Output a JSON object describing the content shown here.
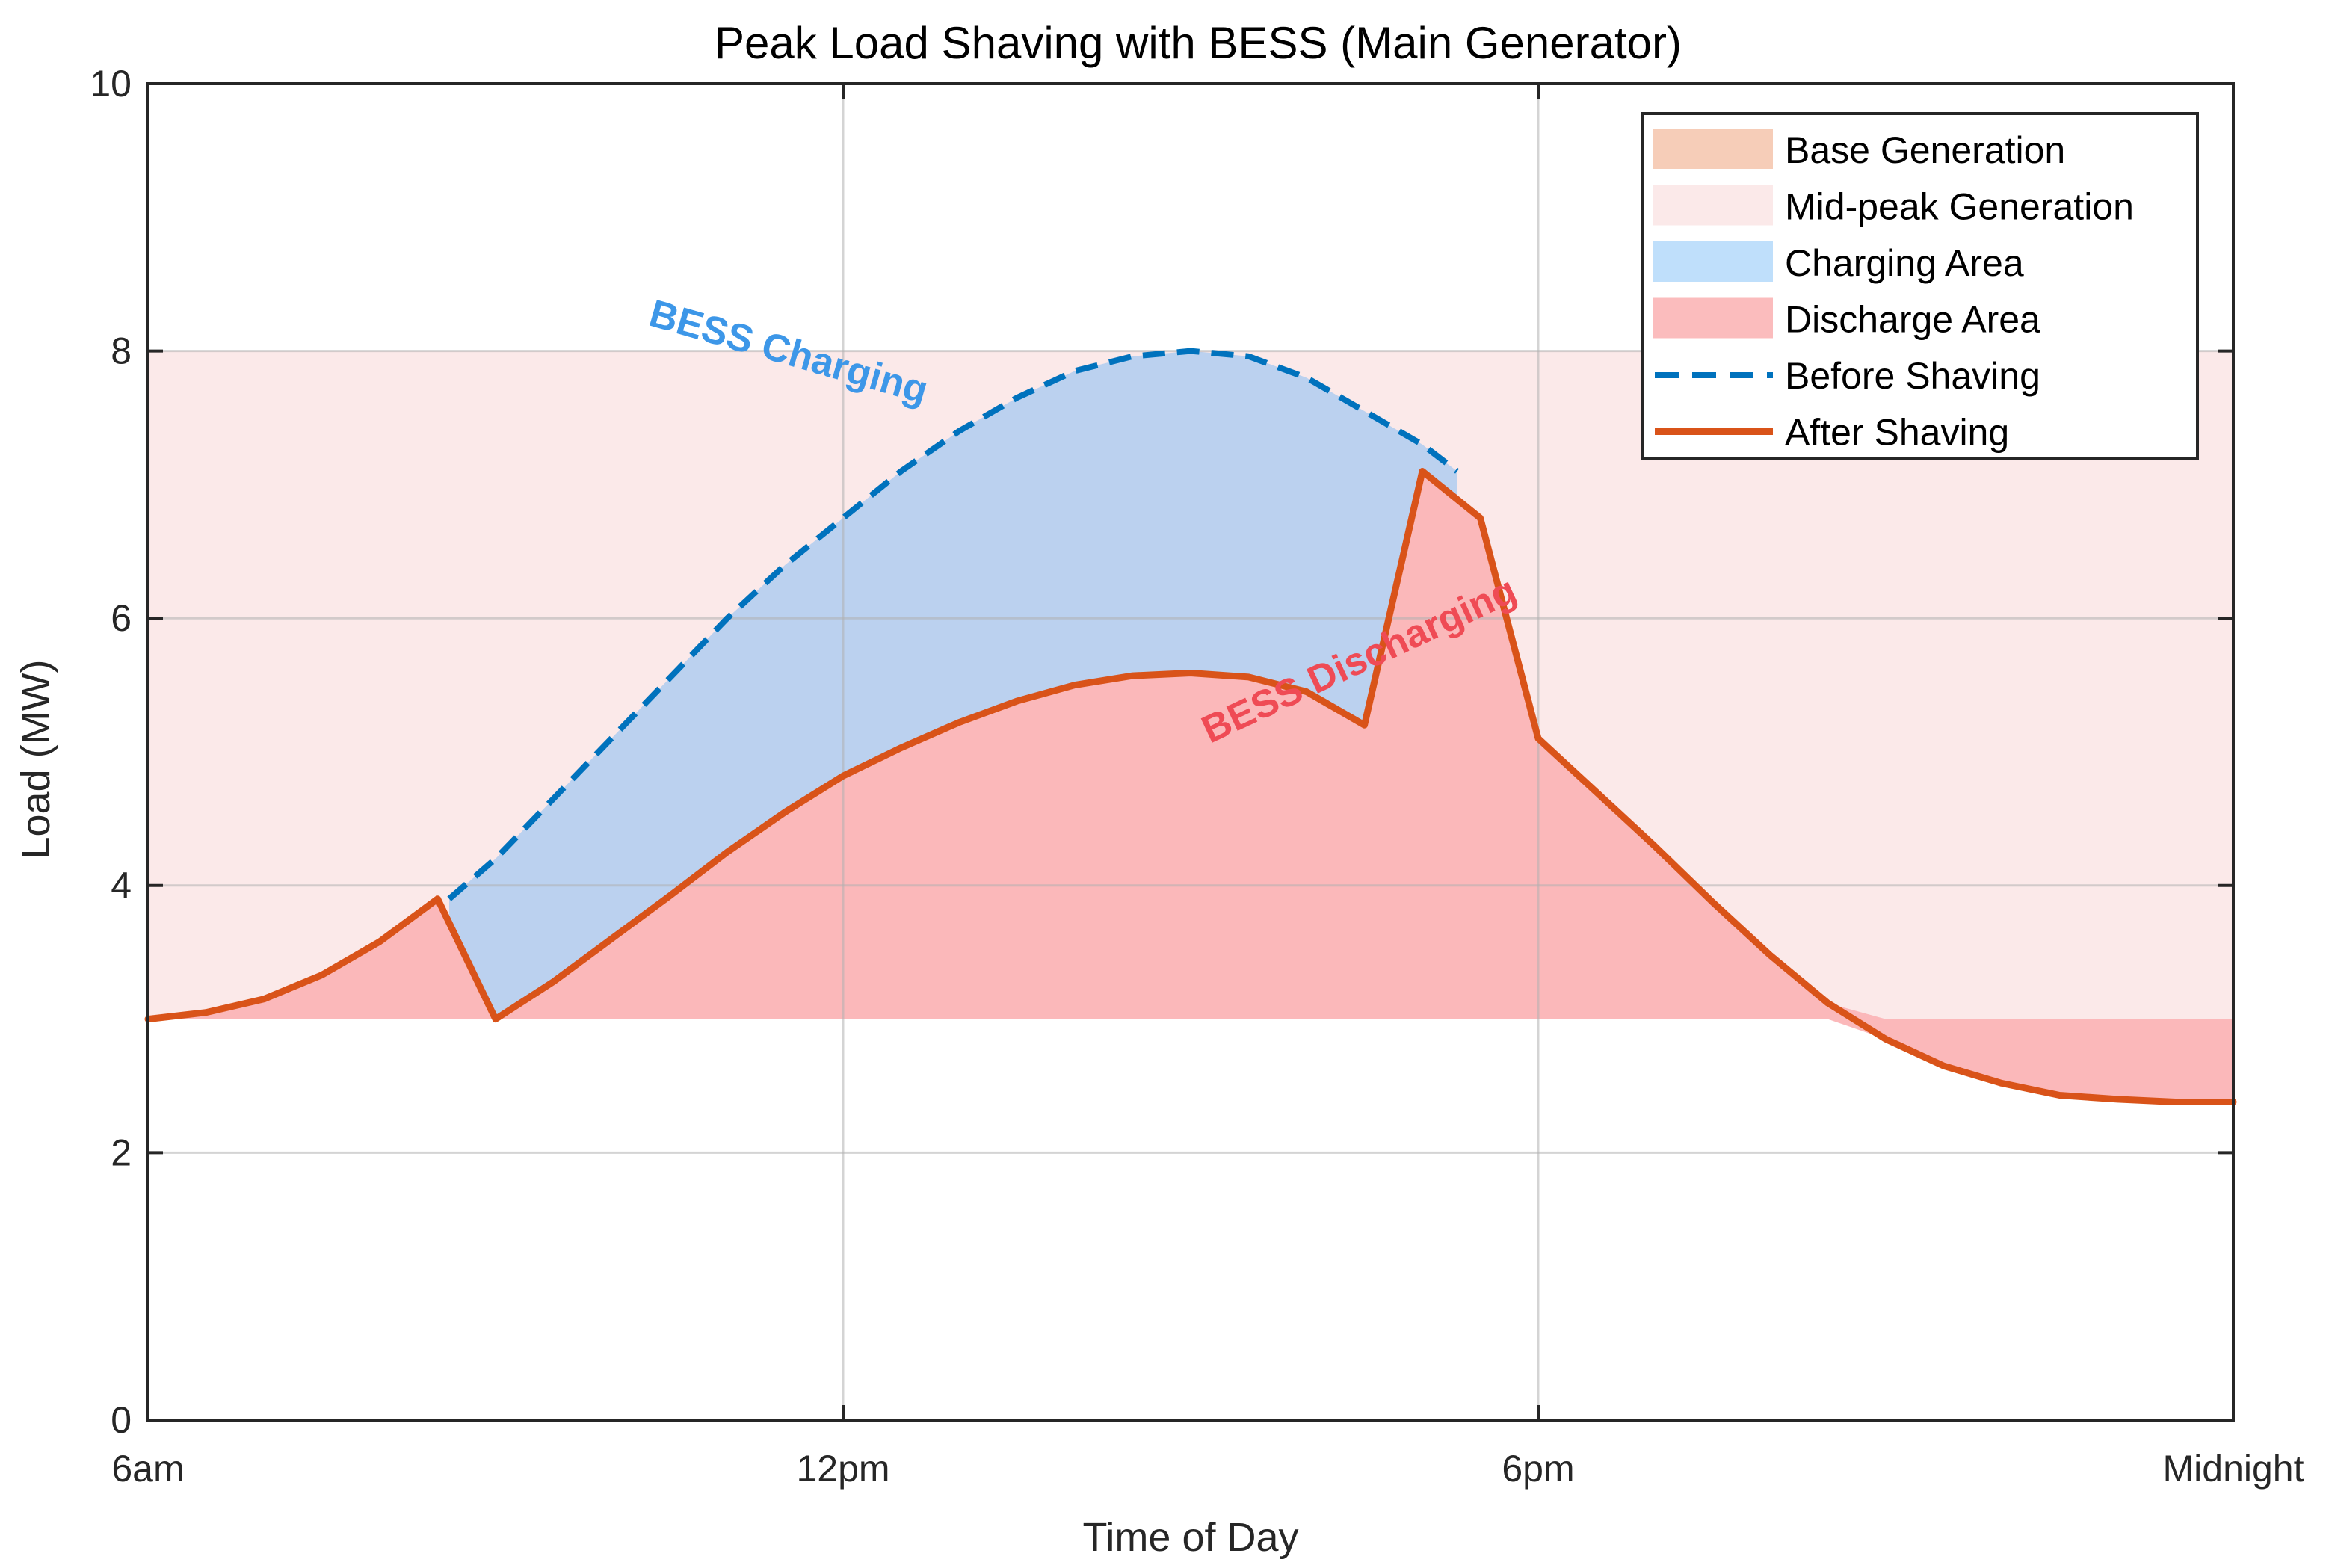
{
  "chart_data": {
    "type": "area",
    "title": "Peak Load Shaving with BESS (Main Generator)",
    "xlabel": "Time of Day",
    "ylabel": "Load (MW)",
    "xlim": [
      6,
      24
    ],
    "ylim": [
      0,
      10
    ],
    "xticks": [
      {
        "value": 6,
        "label": "6am"
      },
      {
        "value": 12,
        "label": "12pm"
      },
      {
        "value": 18,
        "label": "6pm"
      },
      {
        "value": 24,
        "label": "Midnight"
      }
    ],
    "yticks": [
      0,
      2,
      4,
      6,
      8,
      10
    ],
    "grid": true,
    "legend_position": "top-right",
    "bands": [
      {
        "name": "Base Generation",
        "from": 0,
        "to": 3,
        "color": "#f6cdb8",
        "opacity": 0
      },
      {
        "name": "Mid-peak Generation",
        "from": 3,
        "to": 8,
        "color": "#fbe9e9",
        "opacity": 1
      }
    ],
    "before_shaving": {
      "name": "Before Shaving",
      "color": "#0072bd",
      "x": [
        8.6,
        9.0,
        9.5,
        10.0,
        10.5,
        11.0,
        11.5,
        12.0,
        12.5,
        13.0,
        13.5,
        14.0,
        14.5,
        15.0,
        15.5,
        16.0,
        16.5,
        17.0,
        17.3
      ],
      "y": [
        3.9,
        4.2,
        4.65,
        5.1,
        5.55,
        6.0,
        6.4,
        6.75,
        7.1,
        7.4,
        7.65,
        7.85,
        7.96,
        8.0,
        7.96,
        7.8,
        7.55,
        7.3,
        7.1
      ]
    },
    "after_shaving": {
      "name": "After Shaving",
      "color": "#d95319",
      "x": [
        6.0,
        6.5,
        7.0,
        7.5,
        8.0,
        8.5,
        9.0,
        9.5,
        10.0,
        10.5,
        11.0,
        11.5,
        12.0,
        12.5,
        13.0,
        13.5,
        14.0,
        14.5,
        15.0,
        15.5,
        16.0,
        16.5,
        17.0,
        17.5,
        18.0,
        18.5,
        19.0,
        19.5,
        20.0,
        20.5,
        21.0,
        21.5,
        22.0,
        22.5,
        23.0,
        23.5,
        24.0
      ],
      "y": [
        3.0,
        3.05,
        3.15,
        3.33,
        3.58,
        3.9,
        3.0,
        3.28,
        3.6,
        3.92,
        4.25,
        4.55,
        4.82,
        5.03,
        5.22,
        5.38,
        5.5,
        5.57,
        5.59,
        5.56,
        5.45,
        5.2,
        7.1,
        6.75,
        5.1,
        4.7,
        4.3,
        3.88,
        3.48,
        3.12,
        2.85,
        2.65,
        2.52,
        2.43,
        2.4,
        2.38,
        2.38
      ]
    },
    "charging_area": {
      "name": "Charging Area",
      "color": "#bbd1ef",
      "x_range": [
        8.6,
        17.3
      ]
    },
    "discharge_area": {
      "name": "Discharge Area",
      "color": "#fbb8ba",
      "baseline": 3
    },
    "legend": [
      {
        "label": "Base Generation",
        "kind": "patch",
        "color": "#f6cdb8"
      },
      {
        "label": "Mid-peak Generation",
        "kind": "patch",
        "color": "#fbe9e9"
      },
      {
        "label": "Charging Area",
        "kind": "patch",
        "color": "#bfdffb"
      },
      {
        "label": "Discharge Area",
        "kind": "patch",
        "color": "#fbbcbd"
      },
      {
        "label": "Before Shaving",
        "kind": "dashed",
        "color": "#0072bd"
      },
      {
        "label": "After Shaving",
        "kind": "solid",
        "color": "#d95319"
      }
    ],
    "annotations": [
      {
        "text": "BESS Charging",
        "x": 11.5,
        "y": 7.9,
        "angle": 16,
        "color": "#3d97e8"
      },
      {
        "text": "BESS Discharging",
        "x": 16.5,
        "y": 5.6,
        "angle": -25,
        "color": "#ef4b55"
      }
    ]
  }
}
